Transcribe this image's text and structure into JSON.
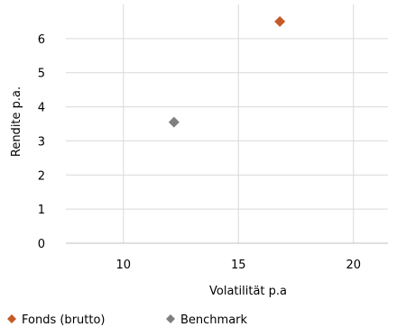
{
  "chart_data": {
    "type": "scatter",
    "xlabel": "Volatilität p.a",
    "ylabel": "Rendite p.a.",
    "xlim": [
      7.5,
      21.5
    ],
    "ylim": [
      0,
      7
    ],
    "x_ticks": [
      10,
      15,
      20
    ],
    "y_ticks": [
      0,
      1,
      2,
      3,
      4,
      5,
      6
    ],
    "grid": "vertical and horizontal lines",
    "legend_position": "bottom-left",
    "series": [
      {
        "name": "Fonds (brutto)",
        "color": "#C55A28",
        "marker": "diamond",
        "points": [
          {
            "x": 16.8,
            "y": 6.5
          }
        ]
      },
      {
        "name": "Benchmark",
        "color": "#7F7F7F",
        "marker": "diamond",
        "points": [
          {
            "x": 12.2,
            "y": 3.55
          }
        ]
      }
    ]
  },
  "colors": {
    "gridline": "#D9D9D9",
    "axis": "#BFBFBF",
    "text": "#000000"
  }
}
